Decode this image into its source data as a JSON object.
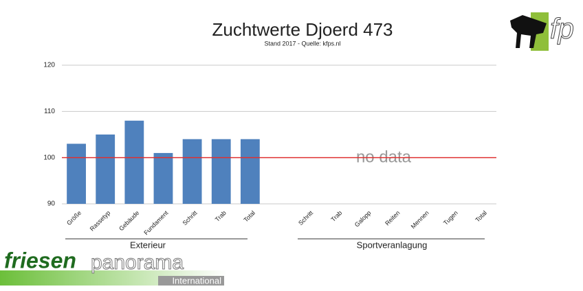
{
  "chart_data": {
    "type": "bar",
    "title": "Zuchtwerte Djoerd 473",
    "subtitle": "Stand 2017 - Quelle: kfps.nl",
    "categories": [
      "Größe",
      "Rassetyp",
      "Gebäude",
      "Fundament",
      "Schritt",
      "Trab",
      "Total",
      null,
      "Schritt",
      "Trab",
      "Galopp",
      "Reiten",
      "Mennen",
      "Tugen",
      "Total"
    ],
    "values": [
      103,
      105,
      108,
      101,
      104,
      104,
      104,
      null,
      null,
      null,
      null,
      null,
      null,
      null,
      null
    ],
    "color": "#4f81bd",
    "ylim": [
      90,
      120
    ],
    "yticks": [
      90,
      100,
      110,
      120
    ],
    "grid": true,
    "reference_line": {
      "value": 100,
      "color": "#e03030"
    },
    "annotation": "no data",
    "groups": [
      "Exterieur",
      "Sportveranlagung"
    ]
  },
  "logo": {
    "text": "fp"
  },
  "branding": {
    "name_bold": "friesen",
    "name_light": "panorama",
    "tagline": "International"
  }
}
